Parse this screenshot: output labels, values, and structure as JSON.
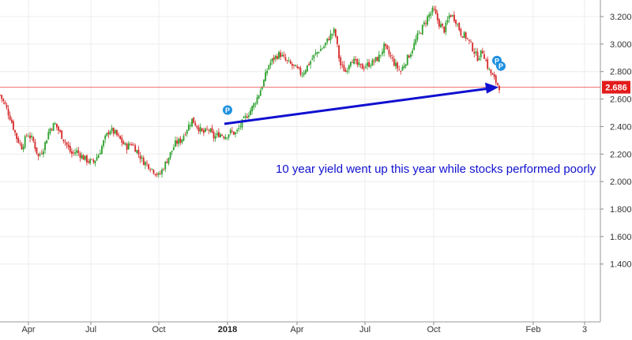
{
  "chart_data": {
    "type": "candlestick",
    "title": "",
    "xlabel": "",
    "ylabel": "",
    "ylim": [
      1.2,
      3.3
    ],
    "grid": true,
    "y_ticks": [
      "3.200",
      "3.000",
      "2.800",
      "2.600",
      "2.400",
      "2.200",
      "2.000",
      "1.800",
      "1.600",
      "1.400"
    ],
    "x_ticks": [
      {
        "label": "Apr",
        "bold": false
      },
      {
        "label": "Jul",
        "bold": false
      },
      {
        "label": "Oct",
        "bold": false
      },
      {
        "label": "2018",
        "bold": true
      },
      {
        "label": "Apr",
        "bold": false
      },
      {
        "label": "Jul",
        "bold": false
      },
      {
        "label": "Oct",
        "bold": false
      },
      {
        "label": "Feb",
        "bold": false
      },
      {
        "label": "3",
        "bold": false
      }
    ],
    "last_price": {
      "value": 2.686,
      "label": "2.686",
      "color": "#e31b1b"
    },
    "up_color": "#2ca02c",
    "down_color": "#d62728",
    "series": [
      {
        "name": "",
        "close_path": [
          2.63,
          2.55,
          2.45,
          2.32,
          2.25,
          2.35,
          2.3,
          2.18,
          2.25,
          2.38,
          2.42,
          2.35,
          2.28,
          2.2,
          2.22,
          2.18,
          2.15,
          2.14,
          2.2,
          2.3,
          2.38,
          2.35,
          2.3,
          2.25,
          2.28,
          2.22,
          2.15,
          2.12,
          2.08,
          2.04,
          2.12,
          2.2,
          2.28,
          2.3,
          2.38,
          2.45,
          2.4,
          2.35,
          2.38,
          2.32,
          2.35,
          2.33,
          2.36,
          2.35,
          2.42,
          2.48,
          2.54,
          2.62,
          2.72,
          2.85,
          2.9,
          2.93,
          2.88,
          2.85,
          2.82,
          2.78,
          2.84,
          2.9,
          2.95,
          2.98,
          3.05,
          3.1,
          2.85,
          2.8,
          2.9,
          2.85,
          2.83,
          2.85,
          2.87,
          2.9,
          2.98,
          2.92,
          2.85,
          2.8,
          2.88,
          2.95,
          3.05,
          3.12,
          3.2,
          3.25,
          3.15,
          3.1,
          3.22,
          3.18,
          3.08,
          3.05,
          2.98,
          2.9,
          2.95,
          2.82,
          2.75,
          2.69
        ]
      }
    ],
    "markers": [
      {
        "label": "P",
        "color": "#1e90e0"
      },
      {
        "label": "P",
        "color": "#1e90e0"
      },
      {
        "label": "P",
        "color": "#1e90e0"
      }
    ],
    "arrow_color": "#1010d0",
    "annotations": [
      "10 year yield went up this year while stocks performed poorly"
    ]
  }
}
